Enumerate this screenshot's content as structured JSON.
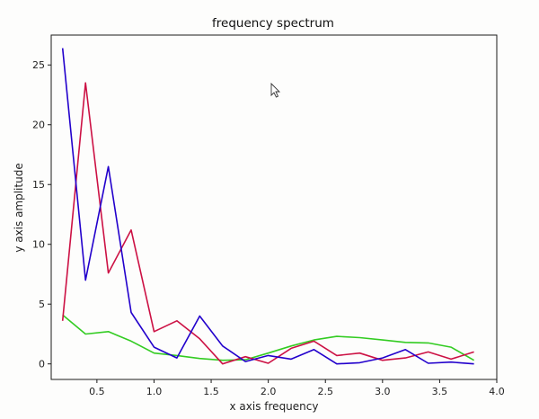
{
  "chart_data": {
    "type": "line",
    "title": "frequency spectrum",
    "xlabel": "x axis frequency",
    "ylabel": "y axis amplitude",
    "xlim": [
      0.1,
      4.0
    ],
    "ylim": [
      -1.3,
      27.5
    ],
    "xticks": [
      "0.5",
      "1.0",
      "1.5",
      "2.0",
      "2.5",
      "3.0",
      "3.5",
      "4.0"
    ],
    "xtick_values": [
      0.5,
      1.0,
      1.5,
      2.0,
      2.5,
      3.0,
      3.5,
      4.0
    ],
    "yticks": [
      "0",
      "5",
      "10",
      "15",
      "20",
      "25"
    ],
    "ytick_values": [
      0,
      5,
      10,
      15,
      20,
      25
    ],
    "grid": false,
    "x": [
      0.2,
      0.4,
      0.6,
      0.8,
      1.0,
      1.2,
      1.4,
      1.6,
      1.8,
      2.0,
      2.2,
      2.4,
      2.6,
      2.8,
      3.0,
      3.2,
      3.4,
      3.6,
      3.8
    ],
    "series": [
      {
        "color": "#2200cc",
        "values": [
          26.4,
          7.0,
          16.5,
          4.3,
          1.4,
          0.5,
          4.0,
          1.5,
          0.2,
          0.7,
          0.4,
          1.2,
          0.0,
          0.1,
          0.5,
          1.2,
          0.05,
          0.15,
          0.0
        ]
      },
      {
        "color": "#cc1144",
        "values": [
          3.6,
          23.5,
          7.6,
          11.2,
          2.7,
          3.6,
          2.1,
          0.0,
          0.6,
          0.05,
          1.3,
          1.9,
          0.7,
          0.9,
          0.3,
          0.5,
          1.0,
          0.4,
          1.0
        ]
      },
      {
        "color": "#33cc22",
        "values": [
          4.1,
          2.5,
          2.7,
          1.9,
          0.9,
          0.7,
          0.45,
          0.3,
          0.35,
          0.9,
          1.5,
          2.0,
          2.3,
          2.2,
          2.0,
          1.8,
          1.75,
          1.4,
          0.3
        ]
      }
    ]
  }
}
